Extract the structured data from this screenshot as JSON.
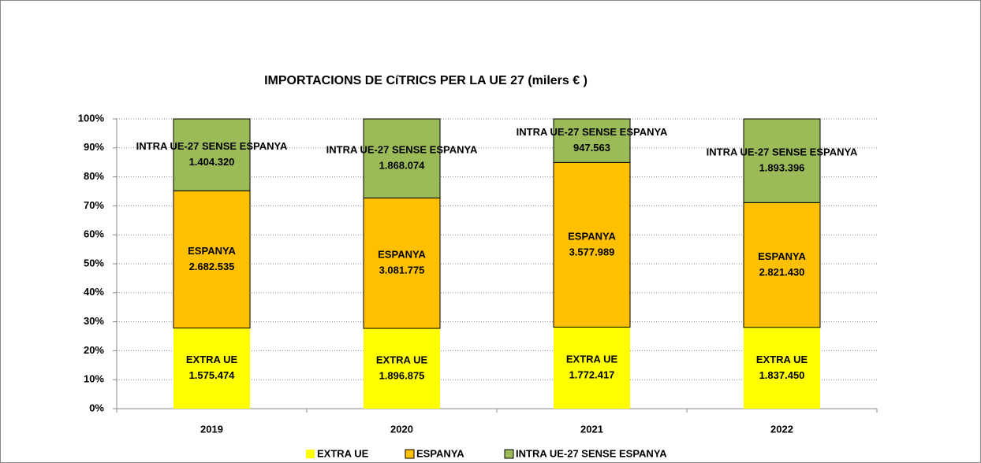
{
  "chart_data": {
    "type": "stacked_bar_100",
    "title": "IMPORTACIONS DE CíTRICS PER LA UE 27 (milers € )",
    "categories": [
      "2019",
      "2020",
      "2021",
      "2022"
    ],
    "series": [
      {
        "name": "EXTRA UE",
        "color": "#ffff00",
        "values": [
          1575474,
          1896875,
          1772417,
          1837450
        ],
        "value_labels": [
          "1.575.474",
          "1.896.875",
          "1.772.417",
          "1.837.450"
        ]
      },
      {
        "name": "ESPANYA",
        "color": "#ffc000",
        "values": [
          2682535,
          3081775,
          3577989,
          2821430
        ],
        "value_labels": [
          "2.682.535",
          "3.081.775",
          "3.577.989",
          "2.821.430"
        ]
      },
      {
        "name": "INTRA UE-27 SENSE ESPANYA",
        "color": "#9bbb59",
        "values": [
          1404320,
          1868074,
          947563,
          1893396
        ],
        "value_labels": [
          "1.404.320",
          "1.868.074",
          "947.563",
          "1.893.396"
        ]
      }
    ],
    "ylim": [
      0,
      100
    ],
    "yticks": [
      {
        "value": 0,
        "label": "0%"
      },
      {
        "value": 10,
        "label": "10%"
      },
      {
        "value": 20,
        "label": "20%"
      },
      {
        "value": 30,
        "label": "30%"
      },
      {
        "value": 40,
        "label": "40%"
      },
      {
        "value": 50,
        "label": "50%"
      },
      {
        "value": 60,
        "label": "60%"
      },
      {
        "value": 70,
        "label": "70%"
      },
      {
        "value": 80,
        "label": "80%"
      },
      {
        "value": 90,
        "label": "90%"
      },
      {
        "value": 100,
        "label": "100%"
      }
    ],
    "grid": true,
    "legend": "bottom"
  }
}
